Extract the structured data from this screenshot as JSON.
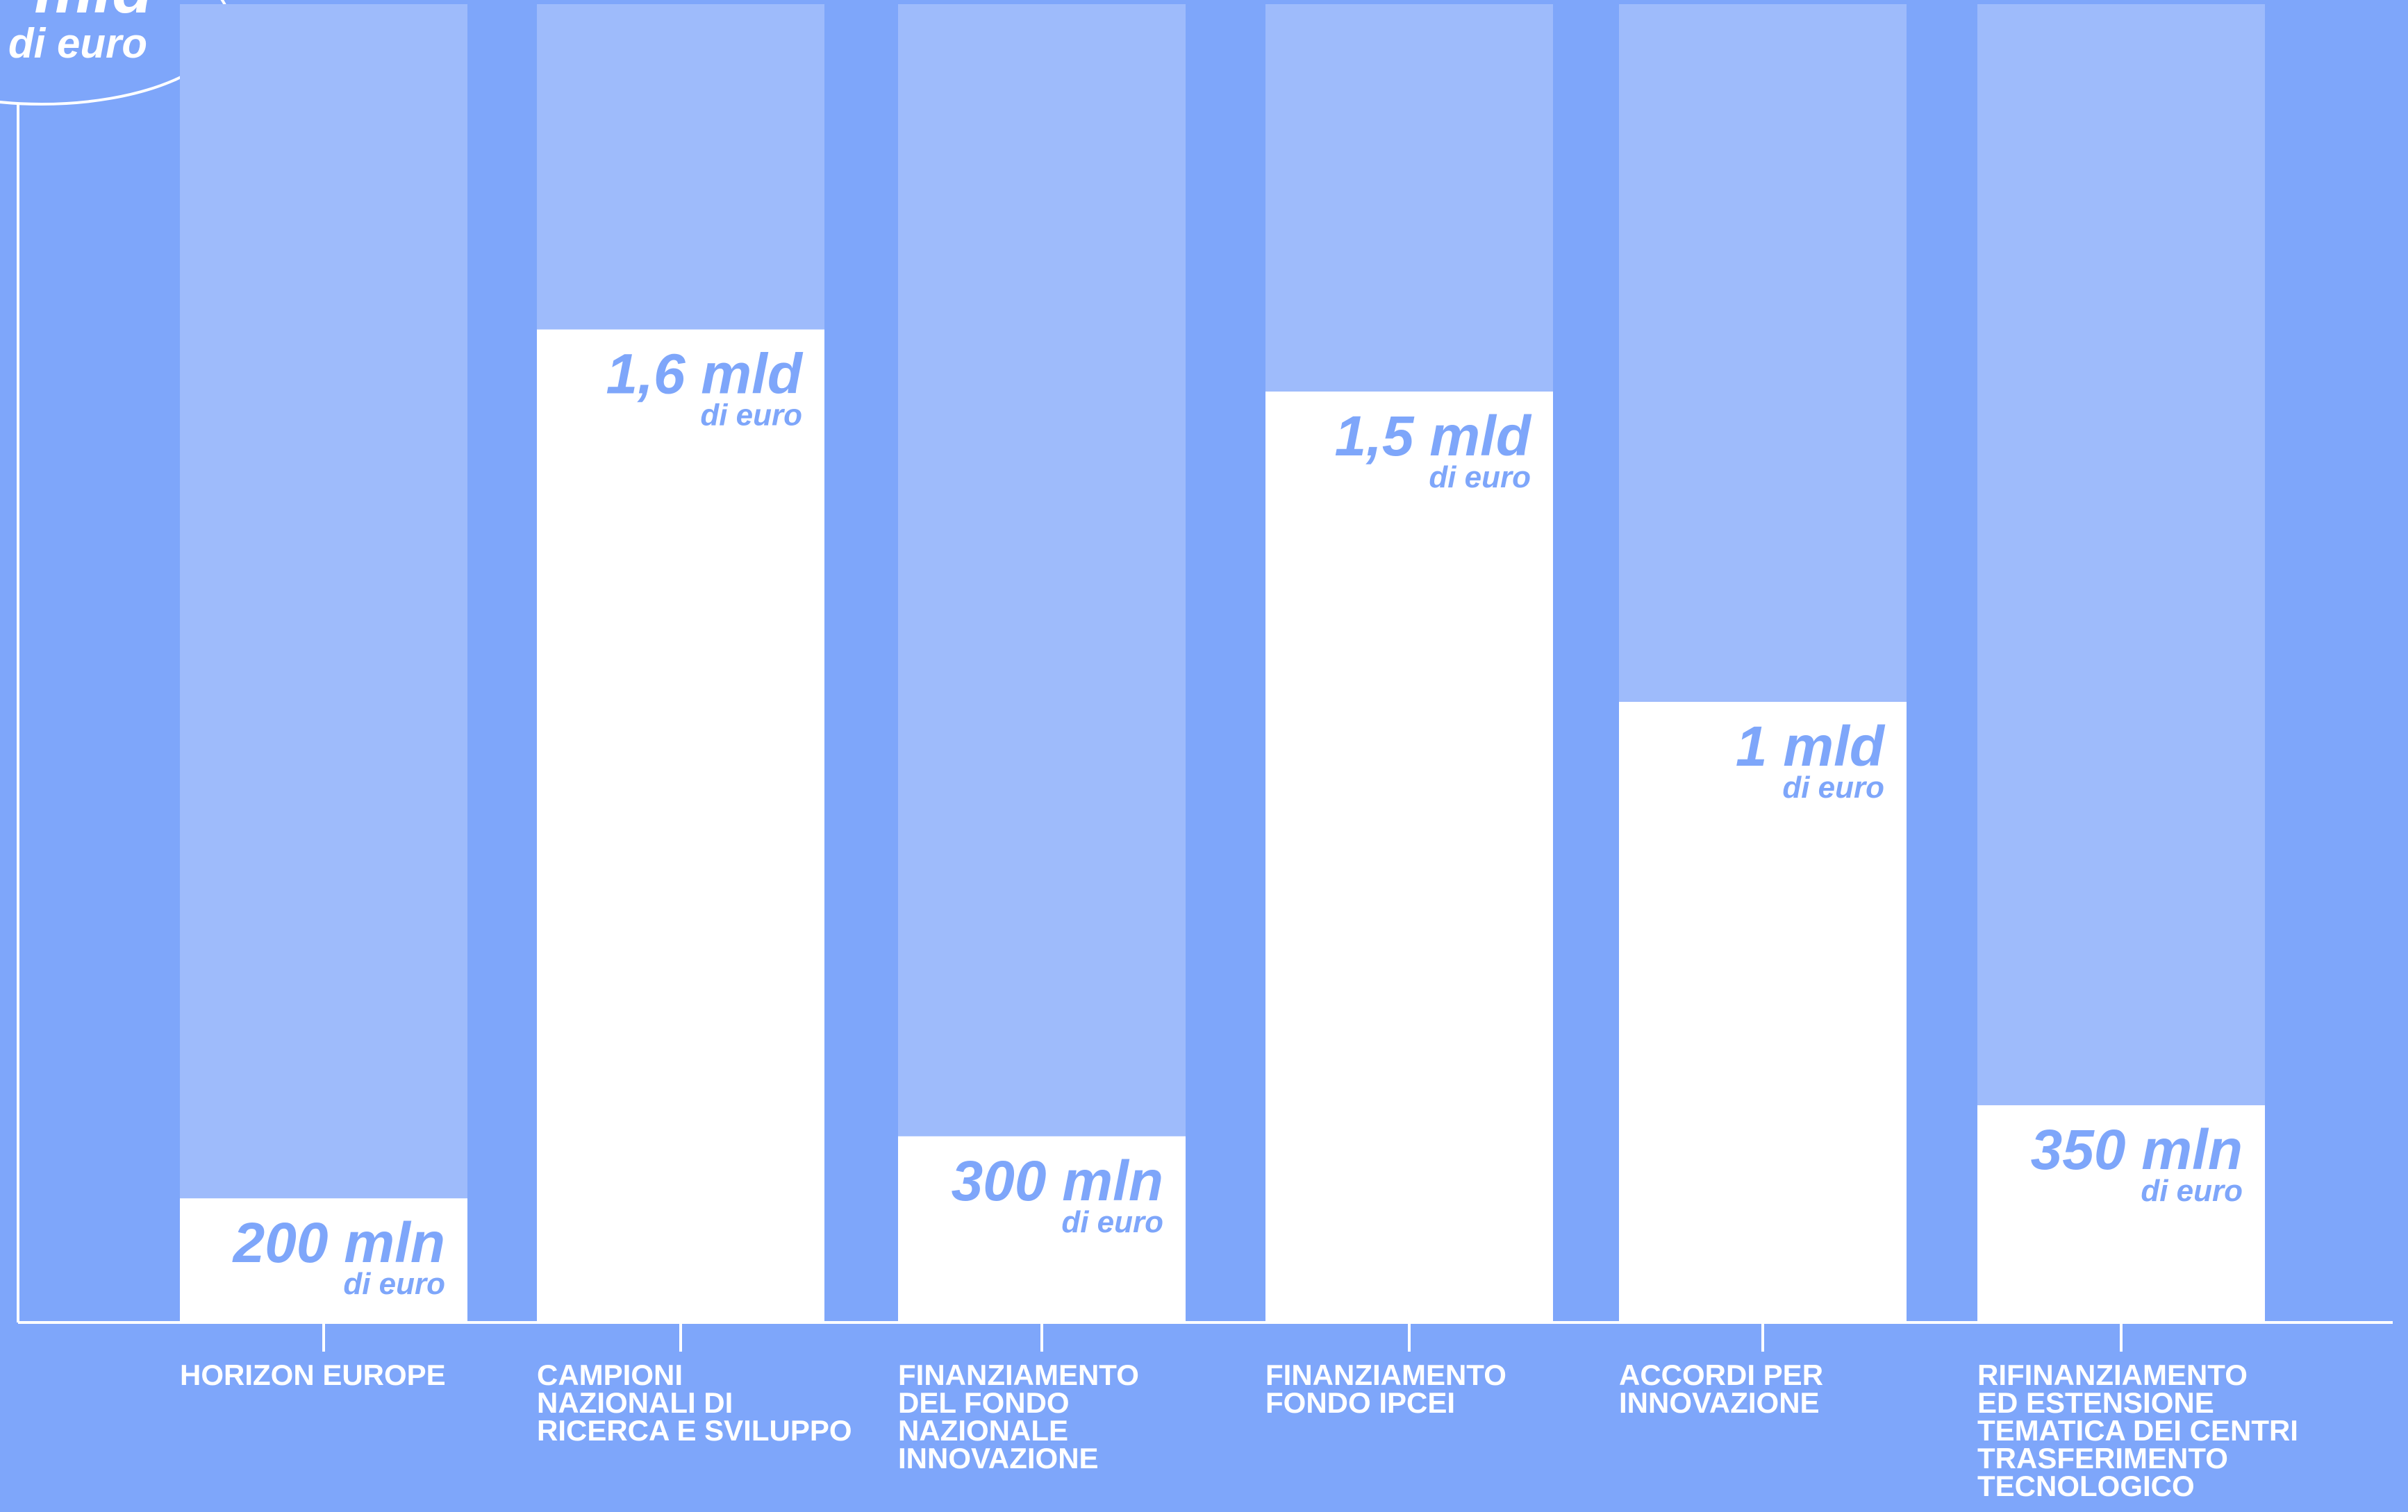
{
  "chart_data": {
    "type": "bar",
    "title": "",
    "xlabel": "",
    "ylabel": "",
    "ylim": [
      0,
      4.2
    ],
    "grid": false,
    "legend": "none",
    "categories": [
      "HORIZON EUROPE",
      "CAMPIONI NAZIONALI DI RICERCA E SVILUPPO",
      "FINANZIAMENTO DEL FONDO NAZIONALE INNOVAZIONE",
      "FINANZIAMENTO FONDO IPCEI",
      "ACCORDI PER INNOVAZIONE",
      "RIFINANZIAMENTO ED ESTENSIONE TEMATICA DEI CENTRI TRASFERIMENTO TECNOLOGICO"
    ],
    "category_lines": [
      [
        "HORIZON EUROPE"
      ],
      [
        "CAMPIONI",
        "NAZIONALI DI",
        "RICERCA E SVILUPPO"
      ],
      [
        "FINANZIAMENTO",
        "DEL FONDO",
        "NAZIONALE",
        "INNOVAZIONE"
      ],
      [
        "FINANZIAMENTO",
        "FONDO IPCEI"
      ],
      [
        "ACCORDI PER",
        "INNOVAZIONE"
      ],
      [
        "RIFINANZIAMENTO",
        "ED ESTENSIONE",
        "TEMATICA DEI CENTRI",
        "TRASFERIMENTO",
        "TECNOLOGICO"
      ]
    ],
    "values": [
      0.2,
      1.6,
      0.3,
      1.5,
      1.0,
      0.35
    ],
    "value_labels": [
      "200 mln",
      "1,6 mld",
      "300 mln",
      "1,5 mld",
      "1 mld",
      "350 mln"
    ],
    "value_units": [
      "di euro",
      "di euro",
      "di euro",
      "di euro",
      "di euro",
      "di euro"
    ],
    "total_label": {
      "main": "mld",
      "unit": "di euro"
    },
    "colors": {
      "background": "#7ea6fa",
      "bar_track": "#9ebbfb",
      "bar_fill": "#ffffff",
      "axis": "#ffffff",
      "value_text": "#7ea6fa",
      "category_text": "#ffffff"
    }
  }
}
